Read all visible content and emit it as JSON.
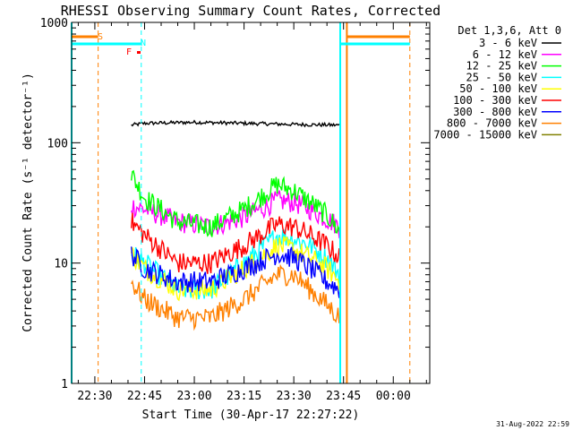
{
  "chart_data": {
    "type": "line",
    "title": "RHESSI Observing Summary Count Rates, Corrected",
    "xlabel": "Start Time (30-Apr-17 22:27:22)",
    "ylabel": "Corrected Count Rate (s⁻¹ detector⁻¹)",
    "y_scale": "log",
    "ylim": [
      1,
      1000
    ],
    "xlim": [
      "22:23",
      "00:11"
    ],
    "x_ticks": [
      "22:30",
      "22:45",
      "23:00",
      "23:15",
      "23:30",
      "23:45",
      "00:00"
    ],
    "y_ticks": [
      "1",
      "10",
      "100",
      "1000"
    ],
    "grid": false,
    "legend_position": "right, outside plot",
    "legend_title": "Det 1,3,6, Att 0",
    "series": [
      {
        "name": "3 - 6 keV",
        "color": "#000000",
        "x": [
          "22:41",
          "22:45",
          "23:00",
          "23:15",
          "23:30",
          "23:44"
        ],
        "y": [
          140,
          145,
          148,
          145,
          142,
          140
        ]
      },
      {
        "name": "6 - 12 keV",
        "color": "#ff00ff",
        "x": [
          "22:41",
          "22:45",
          "22:55",
          "23:05",
          "23:15",
          "23:25",
          "23:30",
          "23:35",
          "23:44"
        ],
        "y": [
          30,
          28,
          22,
          20,
          24,
          33,
          32,
          28,
          20
        ]
      },
      {
        "name": "12 - 25 keV",
        "color": "#00ff00",
        "x": [
          "22:41",
          "22:45",
          "22:55",
          "23:05",
          "23:15",
          "23:25",
          "23:30",
          "23:35",
          "23:40",
          "23:44"
        ],
        "y": [
          55,
          35,
          22,
          20,
          28,
          45,
          40,
          32,
          25,
          18
        ]
      },
      {
        "name": "25 - 50 keV",
        "color": "#00ffff",
        "x": [
          "22:41",
          "22:45",
          "22:55",
          "23:05",
          "23:15",
          "23:25",
          "23:30",
          "23:35",
          "23:40",
          "23:44"
        ],
        "y": [
          12,
          10,
          6,
          6,
          10,
          17,
          16,
          14,
          11,
          8
        ]
      },
      {
        "name": "50 - 100 keV",
        "color": "#ffff00",
        "x": [
          "22:41",
          "22:45",
          "22:55",
          "23:05",
          "23:15",
          "23:25",
          "23:30",
          "23:35",
          "23:40",
          "23:44"
        ],
        "y": [
          12,
          9,
          6,
          6,
          9,
          14,
          13,
          11,
          9,
          7
        ]
      },
      {
        "name": "100 - 300 keV",
        "color": "#ff0000",
        "x": [
          "22:41",
          "22:45",
          "22:55",
          "23:05",
          "23:15",
          "23:25",
          "23:30",
          "23:35",
          "23:40",
          "23:44"
        ],
        "y": [
          22,
          17,
          10,
          10,
          14,
          21,
          20,
          17,
          14,
          11
        ]
      },
      {
        "name": "300 - 800 keV",
        "color": "#0000ff",
        "x": [
          "22:41",
          "22:45",
          "22:55",
          "23:05",
          "23:15",
          "23:25",
          "23:30",
          "23:35",
          "23:40",
          "23:44"
        ],
        "y": [
          12,
          9,
          7,
          7,
          9,
          12,
          11,
          9,
          7,
          6
        ]
      },
      {
        "name": "800 - 7000 keV",
        "color": "#ff8000",
        "x": [
          "22:41",
          "22:45",
          "22:55",
          "23:05",
          "23:15",
          "23:25",
          "23:30",
          "23:35",
          "23:40",
          "23:44"
        ],
        "y": [
          7,
          5,
          3.5,
          3.5,
          5,
          8,
          8,
          6,
          4.5,
          3.5
        ]
      },
      {
        "name": "7000 - 15000 keV",
        "color": "#808000",
        "x": [],
        "y": []
      }
    ],
    "annotations": [
      {
        "label": "S",
        "color": "#ff8000"
      },
      {
        "label": "N",
        "color": "#00ffff"
      },
      {
        "label": "F",
        "color": "#ff0000"
      }
    ],
    "markers": {
      "eclipse_color": "#00ffff",
      "saa_color": "#ff8000",
      "eclipse_end": "22:23",
      "saa_start": "22:31",
      "night_end": "22:44",
      "eclipse_start": "23:44",
      "saa_end": "23:46",
      "saa_dashed": "00:05"
    }
  },
  "footer": {
    "date_stamp": "31-Aug-2022 22:59"
  }
}
